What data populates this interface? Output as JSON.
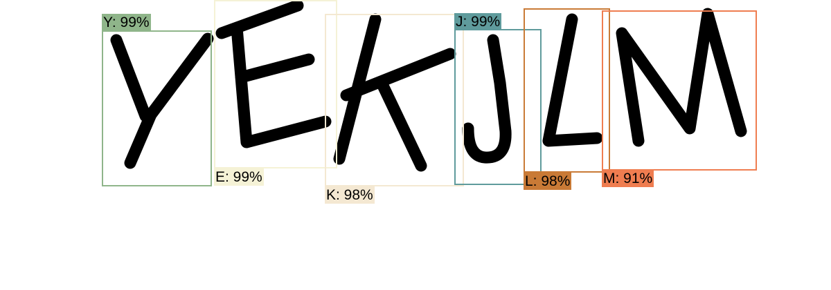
{
  "detections": [
    {
      "label": "Y: 99%",
      "color": "#8fb58a"
    },
    {
      "label": "E: 99%",
      "color": "#f5f2d6"
    },
    {
      "label": "K: 98%",
      "color": "#f4e8d2"
    },
    {
      "label": "J: 99%",
      "color": "#5f9b9c"
    },
    {
      "label": "L: 98%",
      "color": "#c97a36"
    },
    {
      "label": "M: 91%",
      "color": "#ef7d50"
    }
  ]
}
